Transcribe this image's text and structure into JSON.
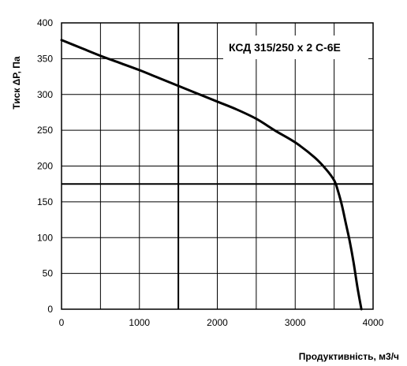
{
  "chart_data": {
    "type": "line",
    "title": "",
    "xlabel": "Продуктивність, м3/ч",
    "ylabel": "Тиск ΔР, Па",
    "model_label": "КСД 315/250 х 2 С-6Е",
    "xlim": [
      0,
      4000
    ],
    "ylim": [
      0,
      400
    ],
    "x_ticks": [
      0,
      1000,
      2000,
      3000,
      4000
    ],
    "y_ticks": [
      0,
      50,
      100,
      150,
      200,
      250,
      300,
      350,
      400
    ],
    "x_grid_step": 500,
    "grid": true,
    "reference_point": {
      "x": 1500,
      "y": 175
    },
    "series": [
      {
        "x": [
          0,
          250,
          500,
          750,
          1000,
          1250,
          1500,
          1750,
          2000,
          2250,
          2500,
          2750,
          3000,
          3250,
          3400,
          3500,
          3550,
          3600,
          3650,
          3700,
          3750,
          3800,
          3850
        ],
        "values": [
          376,
          365,
          354,
          344,
          334,
          323,
          312,
          301,
          290,
          279,
          266,
          249,
          233,
          212,
          195,
          180,
          165,
          145,
          120,
          95,
          65,
          30,
          0
        ]
      }
    ],
    "colors": {
      "line": "#000000",
      "grid": "#000000",
      "background": "#ffffff"
    }
  }
}
